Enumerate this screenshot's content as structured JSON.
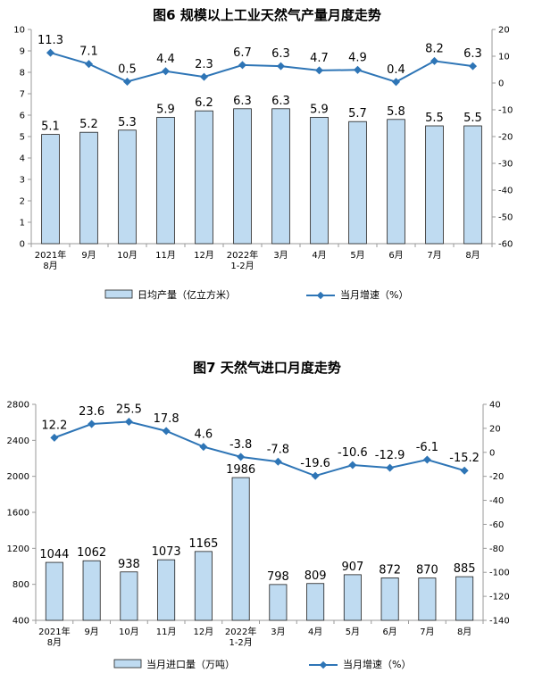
{
  "chart_data": [
    {
      "type": "bar",
      "title": "图6  规模以上工业天然气产量月度走势",
      "categories": [
        "2021年|8月",
        "9月",
        "10月",
        "11月",
        "12月",
        "2022年|1-2月",
        "3月",
        "4月",
        "5月",
        "6月",
        "7月",
        "8月"
      ],
      "series": [
        {
          "name": "日均产量（亿立方米）",
          "type": "bar",
          "axis": "left",
          "values": [
            5.1,
            5.2,
            5.3,
            5.9,
            6.2,
            6.3,
            6.3,
            5.9,
            5.7,
            5.8,
            5.5,
            5.5
          ]
        },
        {
          "name": "当月增速（%）",
          "type": "line",
          "axis": "right",
          "values": [
            11.3,
            7.1,
            0.5,
            4.4,
            2.3,
            6.7,
            6.3,
            4.7,
            4.9,
            0.4,
            8.2,
            6.3
          ]
        }
      ],
      "ylim_left": [
        0,
        10
      ],
      "yticks_left": [
        "0",
        "1",
        "2",
        "3",
        "4",
        "5",
        "6",
        "7",
        "8",
        "9",
        "10"
      ],
      "ylim_right": [
        -60,
        20
      ],
      "yticks_right": [
        "-60",
        "-50",
        "-40",
        "-30",
        "-20",
        "-10",
        "0",
        "10",
        "20"
      ],
      "legend_position": "bottom"
    },
    {
      "type": "bar",
      "title": "图7  天然气进口月度走势",
      "categories": [
        "2021年|8月",
        "9月",
        "10月",
        "11月",
        "12月",
        "2022年|1-2月",
        "3月",
        "4月",
        "5月",
        "6月",
        "7月",
        "8月"
      ],
      "series": [
        {
          "name": "当月进口量（万吨）",
          "type": "bar",
          "axis": "left",
          "values": [
            1044,
            1062,
            938,
            1073,
            1165,
            1986,
            798,
            809,
            907,
            872,
            870,
            885
          ]
        },
        {
          "name": "当月增速（%）",
          "type": "line",
          "axis": "right",
          "values": [
            12.2,
            23.6,
            25.5,
            17.8,
            4.6,
            -3.8,
            -7.8,
            -19.6,
            -10.6,
            -12.9,
            -6.1,
            -15.2
          ]
        }
      ],
      "ylim_left": [
        400,
        2800
      ],
      "yticks_left": [
        "400",
        "800",
        "1200",
        "1600",
        "2000",
        "2400",
        "2800"
      ],
      "ylim_right": [
        -140,
        40
      ],
      "yticks_right": [
        "-140",
        "-120",
        "-100",
        "-80",
        "-60",
        "-40",
        "-20",
        "0",
        "20",
        "40"
      ],
      "legend_position": "bottom"
    }
  ],
  "colors": {
    "bar_fill": "#bfdbf1",
    "bar_stroke": "#1f1f1f",
    "line": "#2e75b6"
  }
}
